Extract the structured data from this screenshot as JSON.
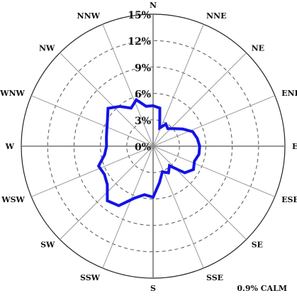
{
  "chart_data": {
    "type": "wind-rose",
    "title": "",
    "direction_labels": [
      "N",
      "NNE",
      "NE",
      "ENE",
      "E",
      "ESE",
      "SE",
      "SSE",
      "S",
      "SSW",
      "SW",
      "WSW",
      "W",
      "WNW",
      "NW",
      "NNW"
    ],
    "ring_labels": [
      "0%",
      "3%",
      "6%",
      "9%",
      "12%",
      "15%"
    ],
    "rings_pct": [
      3,
      6,
      9,
      12,
      15
    ],
    "r_max_pct": 15,
    "radial_unit": "percent",
    "bins": 36,
    "bin_width_deg": 10,
    "start_angle_deg": 0,
    "frequency_pct": [
      4.6,
      4.4,
      2.2,
      2.9,
      2.6,
      3.1,
      3.9,
      4.8,
      5.1,
      5.3,
      5.3,
      5.0,
      5.3,
      4.7,
      2.9,
      3.5,
      3.1,
      4.2,
      5.8,
      5.6,
      6.3,
      7.8,
      8.1,
      6.8,
      6.4,
      6.6,
      5.6,
      5.3,
      5.4,
      5.6,
      6.0,
      6.7,
      5.9,
      5.0,
      5.6,
      4.6
    ],
    "calm_value": "0.9%",
    "calm_label": "0.9% CALM",
    "series_color": "#1414e6",
    "grid": true,
    "grid_style": "dashed rings, solid spokes"
  }
}
